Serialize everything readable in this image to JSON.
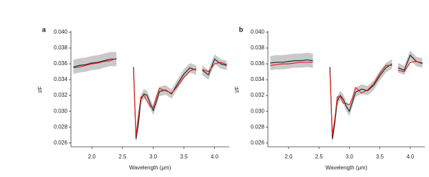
{
  "chart_data": [
    {
      "type": "line",
      "panel_label": "a",
      "ylabel": "I/F",
      "xlabel": "Wavelength (μm)",
      "xlim": [
        1.66,
        4.24
      ],
      "ylim": [
        0.0255,
        0.04
      ],
      "xticks": [
        {
          "value": 2,
          "label": "2.0"
        },
        2.5,
        {
          "value": 3,
          "label": "3.0"
        },
        3.5,
        {
          "value": 4,
          "label": "4.0"
        }
      ],
      "yticks": [
        {
          "value": 0.026,
          "label": "0.026"
        },
        {
          "value": 0.028,
          "label": "0.028"
        },
        {
          "value": 0.03,
          "label": "0.030"
        },
        {
          "value": 0.032,
          "label": "0.032"
        },
        {
          "value": 0.034,
          "label": "0.034"
        },
        {
          "value": 0.036,
          "label": "0.036"
        },
        {
          "value": 0.038,
          "label": "0.038"
        },
        {
          "value": 0.04,
          "label": "0.040"
        }
      ],
      "x": [
        1.7,
        1.8,
        1.9,
        2.0,
        2.1,
        2.2,
        2.3,
        2.4,
        2.55,
        2.68,
        2.72,
        2.76,
        2.8,
        2.85,
        2.9,
        2.95,
        3.0,
        3.05,
        3.1,
        3.2,
        3.3,
        3.4,
        3.5,
        3.6,
        3.7,
        3.75,
        3.8,
        3.9,
        4.0,
        4.1,
        4.2
      ],
      "band": {
        "color": "#c9c9c9",
        "lower": [
          0.0347,
          0.0349,
          0.035,
          0.0352,
          0.0353,
          0.0355,
          0.0357,
          0.0357,
          null,
          0.035,
          0.0259,
          0.0279,
          0.0309,
          0.0316,
          0.0314,
          0.0304,
          0.0295,
          0.0306,
          0.0319,
          0.0321,
          0.0316,
          0.0329,
          0.0341,
          0.0349,
          0.0346,
          null,
          0.0346,
          0.034,
          0.036,
          0.0354,
          0.0352
        ],
        "upper": [
          0.0365,
          0.0367,
          0.0368,
          0.037,
          0.0371,
          0.0373,
          0.0375,
          0.0375,
          null,
          0.0362,
          0.0271,
          0.0291,
          0.0321,
          0.0328,
          0.0326,
          0.0316,
          0.0307,
          0.0318,
          0.0331,
          0.0333,
          0.0328,
          0.0341,
          0.0353,
          0.0361,
          0.0358,
          null,
          0.0358,
          0.0352,
          0.0372,
          0.0366,
          0.0364
        ]
      },
      "series": [
        {
          "color": "#222222",
          "values": [
            0.0356,
            0.0358,
            0.0359,
            0.0361,
            0.0362,
            0.0364,
            0.0366,
            0.0366,
            null,
            0.0356,
            0.0265,
            0.0285,
            0.0315,
            0.0322,
            0.032,
            0.031,
            0.0301,
            0.0312,
            0.0325,
            0.0327,
            0.0322,
            0.0335,
            0.0347,
            0.0355,
            0.0352,
            null,
            0.0352,
            0.0346,
            0.0366,
            0.036,
            0.0358
          ]
        },
        {
          "color": "#e0201c",
          "values": [
            0.0355,
            0.0356,
            0.0358,
            0.036,
            0.0361,
            0.0363,
            0.0364,
            0.0367,
            null,
            0.0352,
            0.0268,
            0.0295,
            0.0318,
            0.032,
            0.0313,
            0.0306,
            0.0305,
            0.0318,
            0.0329,
            0.0326,
            0.0323,
            0.0332,
            0.0343,
            0.0351,
            0.0354,
            null,
            0.0353,
            0.035,
            0.036,
            0.0362,
            0.0359
          ]
        }
      ]
    },
    {
      "type": "line",
      "panel_label": "b",
      "ylabel": "I/F",
      "xlabel": "Wavelength (μm)",
      "xlim": [
        1.66,
        4.24
      ],
      "ylim": [
        0.0255,
        0.04
      ],
      "xticks": [
        {
          "value": 2,
          "label": "2.0"
        },
        2.5,
        {
          "value": 3,
          "label": "3.0"
        },
        3.5,
        {
          "value": 4,
          "label": "4.0"
        }
      ],
      "yticks": [
        {
          "value": 0.026,
          "label": "0.026"
        },
        {
          "value": 0.028,
          "label": "0.028"
        },
        {
          "value": 0.03,
          "label": "0.030"
        },
        {
          "value": 0.032,
          "label": "0.032"
        },
        {
          "value": 0.034,
          "label": "0.034"
        },
        {
          "value": 0.036,
          "label": "0.036"
        },
        {
          "value": 0.038,
          "label": "0.038"
        },
        {
          "value": 0.04,
          "label": "0.040"
        }
      ],
      "x": [
        1.7,
        1.8,
        1.9,
        2.0,
        2.1,
        2.2,
        2.3,
        2.4,
        2.55,
        2.68,
        2.72,
        2.76,
        2.8,
        2.85,
        2.9,
        2.95,
        3.0,
        3.05,
        3.1,
        3.2,
        3.3,
        3.4,
        3.5,
        3.6,
        3.7,
        3.75,
        3.8,
        3.9,
        4.0,
        4.1,
        4.2
      ],
      "band": {
        "color": "#c9c9c9",
        "lower": [
          0.0352,
          0.0353,
          0.0353,
          0.0354,
          0.0355,
          0.0355,
          0.0356,
          0.0355,
          null,
          0.035,
          0.0259,
          0.0279,
          0.0307,
          0.0314,
          0.0309,
          0.03,
          0.0294,
          0.0306,
          0.0318,
          0.0322,
          0.032,
          0.0327,
          0.0339,
          0.0349,
          0.0354,
          null,
          0.0349,
          0.0346,
          0.0365,
          0.0357,
          0.0355
        ],
        "upper": [
          0.037,
          0.0371,
          0.0371,
          0.0372,
          0.0373,
          0.0373,
          0.0374,
          0.0373,
          null,
          0.0362,
          0.0271,
          0.0291,
          0.0319,
          0.0326,
          0.0321,
          0.0312,
          0.0306,
          0.0318,
          0.033,
          0.0334,
          0.0332,
          0.0339,
          0.0351,
          0.0361,
          0.0366,
          null,
          0.0361,
          0.0358,
          0.0377,
          0.0369,
          0.0367
        ]
      },
      "series": [
        {
          "color": "#222222",
          "values": [
            0.0361,
            0.0362,
            0.0362,
            0.0363,
            0.0364,
            0.0364,
            0.0365,
            0.0364,
            null,
            0.0356,
            0.0265,
            0.0285,
            0.0313,
            0.032,
            0.0315,
            0.0306,
            0.03,
            0.0312,
            0.0324,
            0.0328,
            0.0326,
            0.0333,
            0.0345,
            0.0355,
            0.036,
            null,
            0.0355,
            0.0352,
            0.0371,
            0.0363,
            0.0361
          ]
        },
        {
          "color": "#e0201c",
          "values": [
            0.0358,
            0.0359,
            0.036,
            0.036,
            0.0361,
            0.0362,
            0.0362,
            0.0362,
            null,
            0.035,
            0.027,
            0.029,
            0.0318,
            0.0319,
            0.031,
            0.031,
            0.0308,
            0.0317,
            0.033,
            0.0323,
            0.0327,
            0.0335,
            0.0348,
            0.0358,
            0.0358,
            null,
            0.0352,
            0.035,
            0.0362,
            0.0363,
            0.036
          ]
        }
      ]
    }
  ]
}
